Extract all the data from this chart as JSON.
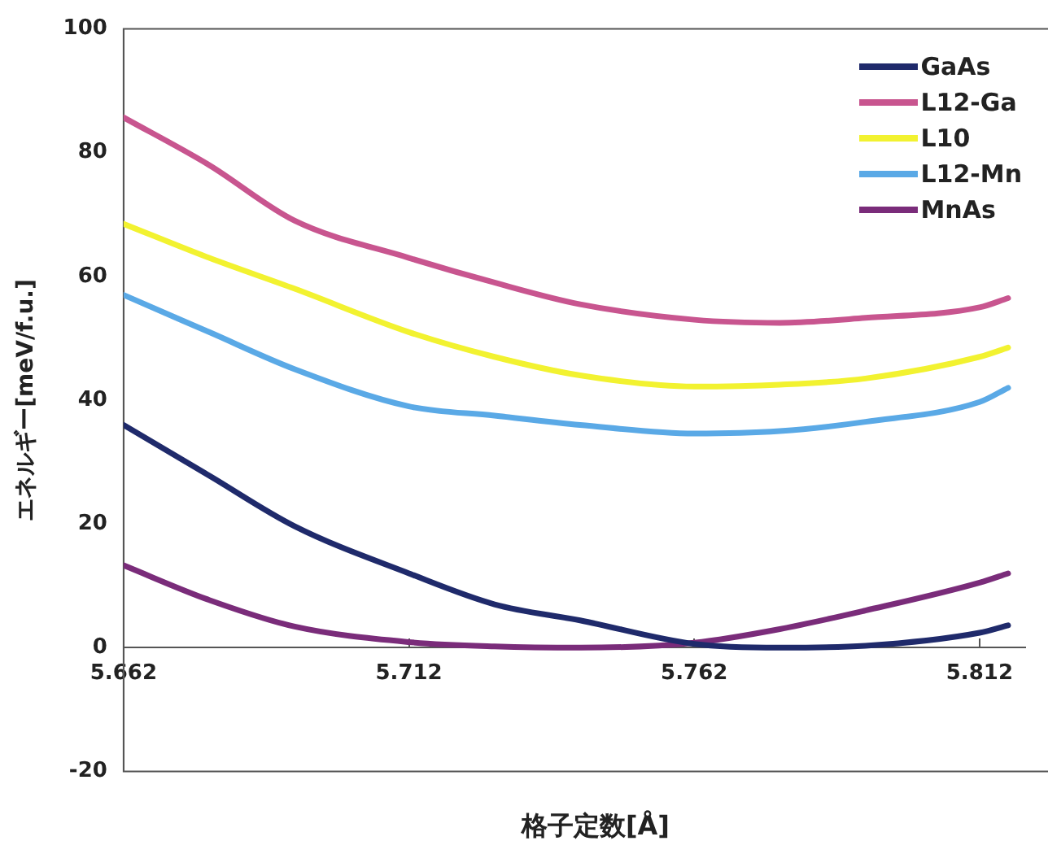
{
  "chart_data": {
    "type": "line",
    "xlabel": "格子定数[Å]",
    "ylabel": "エネルギー[meV/f.u.]",
    "x": [
      5.662,
      5.677,
      5.692,
      5.712,
      5.727,
      5.742,
      5.762,
      5.777,
      5.792,
      5.812,
      5.817
    ],
    "series": [
      {
        "name": "GaAs",
        "color": "#1f2a6b",
        "values": [
          36,
          27.8,
          19.6,
          12,
          7,
          4.4,
          0.6,
          0,
          0.3,
          2.4,
          3.6
        ]
      },
      {
        "name": "L12-Ga",
        "color": "#c8558f",
        "values": [
          85.7,
          78,
          69,
          63,
          59,
          55.5,
          53,
          52.5,
          53.3,
          55,
          56.5
        ]
      },
      {
        "name": "L10",
        "color": "#f2f230",
        "values": [
          68.5,
          63,
          58,
          51,
          47,
          44,
          42.2,
          42.5,
          43.5,
          47,
          48.5
        ]
      },
      {
        "name": "L12-Mn",
        "color": "#5aa9e6",
        "values": [
          57,
          51,
          45,
          39,
          37.5,
          36,
          34.6,
          35,
          36.5,
          39.7,
          42
        ]
      },
      {
        "name": "MnAs",
        "color": "#7a2c7a",
        "values": [
          13.3,
          7.7,
          3.4,
          0.9,
          0.2,
          0,
          0.8,
          3,
          6,
          10.5,
          12
        ]
      }
    ],
    "xlim": [
      5.662,
      5.82
    ],
    "xticks": [
      5.662,
      5.712,
      5.762,
      5.812
    ],
    "ylim": [
      -20,
      100
    ],
    "yticks": [
      -20,
      0,
      20,
      40,
      60,
      80,
      100
    ],
    "grid": false,
    "legend": "top right",
    "marker": "none",
    "line_style": "solid"
  }
}
